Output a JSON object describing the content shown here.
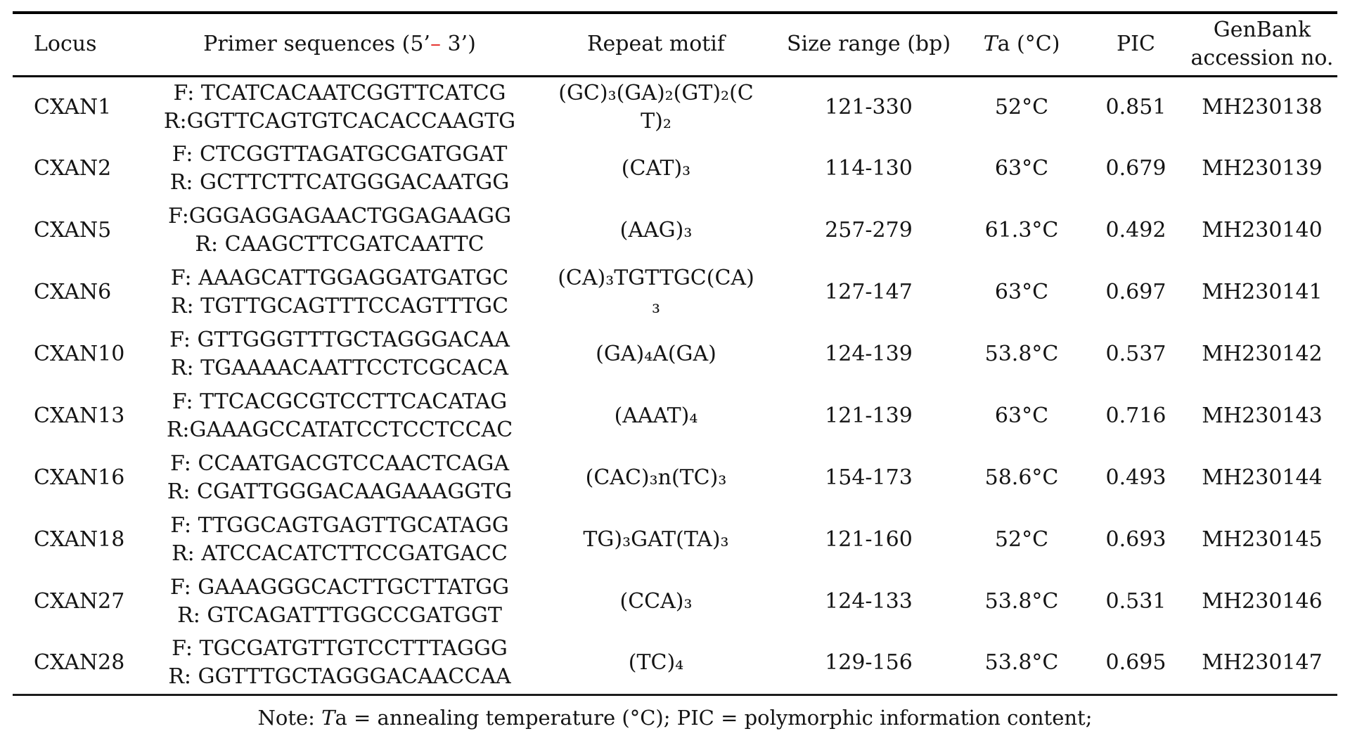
{
  "colors": {
    "accent_red": "#e5322e",
    "text": "#141414",
    "rule": "#000000"
  },
  "table": {
    "header": {
      "locus": "Locus",
      "primer": {
        "prefix": "Primer sequences (5’",
        "dash": "–",
        "suffix": " 3’)"
      },
      "motif": "Repeat motif",
      "size": "Size range (bp)",
      "ta": {
        "t": "T",
        "rest": "a (°C)"
      },
      "pic": "PIC",
      "genbank": "GenBank\naccession no."
    },
    "rows": [
      {
        "locus": "CXAN1",
        "primers": "F: TCATCACAATCGGTTCATCG\nR:GGTTCAGTGTCACACCAAGTG",
        "motif": "(GC)₃(GA)₂(GT)₂(C\nT)₂",
        "size": "121-330",
        "ta": "52°C",
        "pic": "0.851",
        "genbank": "MH230138"
      },
      {
        "locus": "CXAN2",
        "primers": "F: CTCGGTTAGATGCGATGGAT\nR: GCTTCTTCATGGGACAATGG",
        "motif": "(CAT)₃",
        "size": "114-130",
        "ta": "63°C",
        "pic": "0.679",
        "genbank": "MH230139"
      },
      {
        "locus": "CXAN5",
        "primers": "F:GGGAGGAGAACTGGAGAAGG\nR: CAAGCTTCGATCAATTC",
        "motif": "(AAG)₃",
        "size": "257-279",
        "ta": "61.3°C",
        "pic": "0.492",
        "genbank": "MH230140"
      },
      {
        "locus": "CXAN6",
        "primers": "F: AAAGCATTGGAGGATGATGC\nR: TGTTGCAGTTTCCAGTTTGC",
        "motif": "(CA)₃TGTTGC(CA)\n₃",
        "size": "127-147",
        "ta": "63°C",
        "pic": "0.697",
        "genbank": "MH230141"
      },
      {
        "locus": "CXAN10",
        "primers": "F: GTTGGGTTTGCTAGGGACAA\nR: TGAAAACAATTCCTCGCACA",
        "motif": "(GA)₄A(GA)",
        "size": "124-139",
        "ta": "53.8°C",
        "pic": "0.537",
        "genbank": "MH230142"
      },
      {
        "locus": "CXAN13",
        "primers": "F: TTCACGCGTCCTTCACATAG\nR:GAAAGCCATATCCTCCTCCAC",
        "motif": "(AAAT)₄",
        "size": "121-139",
        "ta": "63°C",
        "pic": "0.716",
        "genbank": "MH230143"
      },
      {
        "locus": "CXAN16",
        "primers": "F: CCAATGACGTCCAACTCAGA\nR: CGATTGGGACAAGAAAGGTG",
        "motif": "(CAC)₃n(TC)₃",
        "size": "154-173",
        "ta": "58.6°C",
        "pic": "0.493",
        "genbank": "MH230144"
      },
      {
        "locus": "CXAN18",
        "primers": "F: TTGGCAGTGAGTTGCATAGG\nR: ATCCACATCTTCCGATGACC",
        "motif": "TG)₃GAT(TA)₃",
        "size": "121-160",
        "ta": "52°C",
        "pic": "0.693",
        "genbank": "MH230145"
      },
      {
        "locus": "CXAN27",
        "primers": "F: GAAAGGGCACTTGCTTATGG\nR: GTCAGATTTGGCCGATGGT",
        "motif": "(CCA)₃",
        "size": "124-133",
        "ta": "53.8°C",
        "pic": "0.531",
        "genbank": "MH230146"
      },
      {
        "locus": "CXAN28",
        "primers": "F: TGCGATGTTGTCCTTTAGGG\nR: GGTTTGCTAGGGACAACCAA",
        "motif": "(TC)₄",
        "size": "129-156",
        "ta": "53.8°C",
        "pic": "0.695",
        "genbank": "MH230147"
      }
    ]
  },
  "note": {
    "prefix": "Note: ",
    "t": "T",
    "rest": "a = annealing temperature (°C); PIC = polymorphic information content;"
  }
}
